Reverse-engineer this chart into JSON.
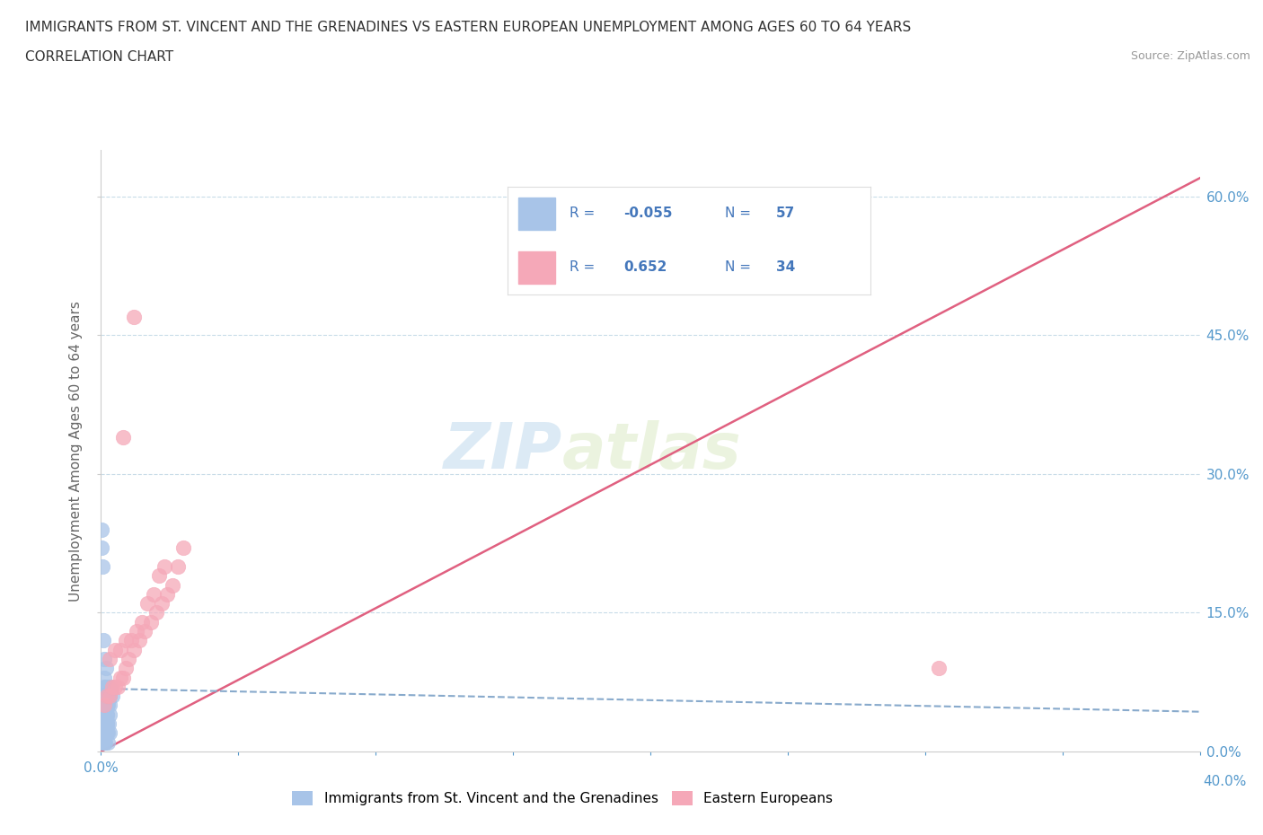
{
  "title": "IMMIGRANTS FROM ST. VINCENT AND THE GRENADINES VS EASTERN EUROPEAN UNEMPLOYMENT AMONG AGES 60 TO 64 YEARS",
  "subtitle": "CORRELATION CHART",
  "source": "Source: ZipAtlas.com",
  "ylabel": "Unemployment Among Ages 60 to 64 years",
  "watermark_zip": "ZIP",
  "watermark_atlas": "atlas",
  "legend_label_1": "Immigrants from St. Vincent and the Grenadines",
  "legend_label_2": "Eastern Europeans",
  "R1": "-0.055",
  "N1": "57",
  "R2": "0.652",
  "N2": "34",
  "color1": "#a8c4e8",
  "color2": "#f5a8b8",
  "trendline1_color": "#88aacc",
  "trendline2_color": "#e06080",
  "xlim": [
    0.0,
    0.4
  ],
  "ylim": [
    0.0,
    0.65
  ],
  "xticks": [
    0.0,
    0.05,
    0.1,
    0.15,
    0.2,
    0.25,
    0.3,
    0.35,
    0.4
  ],
  "yticks": [
    0.0,
    0.15,
    0.3,
    0.45,
    0.6
  ],
  "scatter1_x": [
    0.0002,
    0.0003,
    0.0005,
    0.0008,
    0.001,
    0.0012,
    0.0015,
    0.0018,
    0.002,
    0.0022,
    0.0025,
    0.003,
    0.0032,
    0.0035,
    0.004,
    0.0005,
    0.001,
    0.0015,
    0.002,
    0.0025,
    0.001,
    0.002,
    0.003,
    0.0005,
    0.001,
    0.0015,
    0.002,
    0.0025,
    0.003,
    0.0008,
    0.0012,
    0.0018,
    0.0022,
    0.0028,
    0.0005,
    0.001,
    0.0015,
    0.0005,
    0.001,
    0.0015,
    0.002,
    0.0025,
    0.0008,
    0.001,
    0.0012,
    0.0018,
    0.002,
    0.0005,
    0.001,
    0.0015,
    0.002,
    0.0025,
    0.003,
    0.0008,
    0.001,
    0.0012,
    0.0018
  ],
  "scatter1_y": [
    0.24,
    0.22,
    0.2,
    0.12,
    0.1,
    0.08,
    0.07,
    0.09,
    0.06,
    0.05,
    0.07,
    0.06,
    0.05,
    0.07,
    0.06,
    0.05,
    0.07,
    0.06,
    0.05,
    0.06,
    0.04,
    0.05,
    0.06,
    0.03,
    0.04,
    0.05,
    0.04,
    0.05,
    0.04,
    0.03,
    0.04,
    0.03,
    0.04,
    0.03,
    0.02,
    0.03,
    0.02,
    0.04,
    0.03,
    0.02,
    0.03,
    0.02,
    0.03,
    0.02,
    0.03,
    0.02,
    0.03,
    0.01,
    0.02,
    0.01,
    0.02,
    0.01,
    0.02,
    0.01,
    0.02,
    0.01,
    0.02
  ],
  "scatter2_x": [
    0.001,
    0.002,
    0.003,
    0.004,
    0.005,
    0.006,
    0.007,
    0.008,
    0.009,
    0.01,
    0.012,
    0.014,
    0.016,
    0.018,
    0.02,
    0.022,
    0.024,
    0.026,
    0.028,
    0.03,
    0.003,
    0.005,
    0.007,
    0.009,
    0.011,
    0.013,
    0.015,
    0.017,
    0.019,
    0.021,
    0.023,
    0.305,
    0.012,
    0.008
  ],
  "scatter2_y": [
    0.05,
    0.06,
    0.06,
    0.07,
    0.07,
    0.07,
    0.08,
    0.08,
    0.09,
    0.1,
    0.11,
    0.12,
    0.13,
    0.14,
    0.15,
    0.16,
    0.17,
    0.18,
    0.2,
    0.22,
    0.1,
    0.11,
    0.11,
    0.12,
    0.12,
    0.13,
    0.14,
    0.16,
    0.17,
    0.19,
    0.2,
    0.09,
    0.47,
    0.34
  ],
  "trendline1_x": [
    0.0,
    0.4
  ],
  "trendline1_y": [
    0.068,
    0.043
  ],
  "trendline2_x": [
    0.0,
    0.4
  ],
  "trendline2_y": [
    0.0,
    0.62
  ]
}
